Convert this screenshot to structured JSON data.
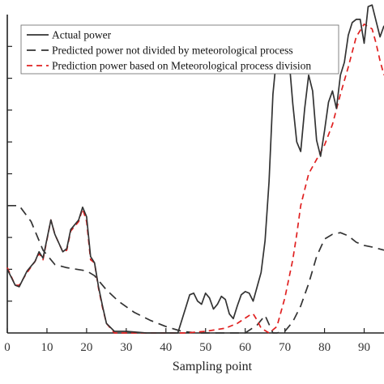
{
  "chart_data": {
    "type": "line",
    "xlabel": "Sampling point",
    "ylabel": "",
    "xlim": [
      0,
      95
    ],
    "ylim": [
      0,
      10
    ],
    "x_ticks": [
      0,
      10,
      20,
      30,
      40,
      50,
      60,
      70,
      80,
      90
    ],
    "y_ticks": [
      1,
      2,
      3,
      4,
      5,
      6,
      7,
      8,
      9
    ],
    "grid": false,
    "legend_position": "top-left",
    "series": [
      {
        "name": "Actual power",
        "color": "#333333",
        "dash": "solid",
        "points": [
          [
            0,
            2.0
          ],
          [
            2,
            1.5
          ],
          [
            3,
            1.45
          ],
          [
            5,
            1.95
          ],
          [
            7,
            2.25
          ],
          [
            8,
            2.55
          ],
          [
            9,
            2.35
          ],
          [
            11,
            3.55
          ],
          [
            12,
            3.1
          ],
          [
            14,
            2.55
          ],
          [
            15,
            2.65
          ],
          [
            16,
            3.25
          ],
          [
            17,
            3.4
          ],
          [
            18,
            3.55
          ],
          [
            19,
            3.95
          ],
          [
            20,
            3.65
          ],
          [
            21,
            2.4
          ],
          [
            22,
            2.2
          ],
          [
            23,
            1.45
          ],
          [
            24,
            0.85
          ],
          [
            25,
            0.3
          ],
          [
            27,
            0.05
          ],
          [
            30,
            0.05
          ],
          [
            35,
            0.0
          ],
          [
            40,
            0.0
          ],
          [
            43,
            0.0
          ],
          [
            45,
            0.8
          ],
          [
            46,
            1.2
          ],
          [
            47,
            1.25
          ],
          [
            48,
            1.0
          ],
          [
            49,
            0.9
          ],
          [
            50,
            1.25
          ],
          [
            51,
            1.1
          ],
          [
            52,
            0.75
          ],
          [
            53,
            0.9
          ],
          [
            54,
            1.15
          ],
          [
            55,
            1.05
          ],
          [
            56,
            0.6
          ],
          [
            57,
            0.45
          ],
          [
            58,
            0.85
          ],
          [
            59,
            1.2
          ],
          [
            60,
            1.3
          ],
          [
            61,
            1.25
          ],
          [
            62,
            1.0
          ],
          [
            63,
            1.45
          ],
          [
            64,
            1.9
          ],
          [
            65,
            2.9
          ],
          [
            66,
            4.75
          ],
          [
            67,
            7.5
          ],
          [
            68,
            8.8
          ],
          [
            69,
            9.55
          ],
          [
            70,
            9.45
          ],
          [
            71,
            8.7
          ],
          [
            72,
            7.2
          ],
          [
            73,
            6.0
          ],
          [
            74,
            5.7
          ],
          [
            75,
            7.05
          ],
          [
            76,
            8.1
          ],
          [
            77,
            7.6
          ],
          [
            78,
            6.05
          ],
          [
            79,
            5.55
          ],
          [
            80,
            6.35
          ],
          [
            81,
            7.25
          ],
          [
            82,
            7.6
          ],
          [
            83,
            7.05
          ],
          [
            84,
            8.1
          ],
          [
            85,
            8.5
          ],
          [
            86,
            9.35
          ],
          [
            87,
            9.75
          ],
          [
            88,
            9.85
          ],
          [
            89,
            9.85
          ],
          [
            90,
            9.1
          ],
          [
            91,
            10.25
          ],
          [
            92,
            10.3
          ],
          [
            93,
            9.8
          ],
          [
            94,
            9.3
          ],
          [
            95,
            9.65
          ]
        ]
      },
      {
        "name": "Predicted power not divided by meteorological process",
        "color": "#333333",
        "dash": "long-dash",
        "points": [
          [
            0,
            4.0
          ],
          [
            3,
            4.0
          ],
          [
            6,
            3.5
          ],
          [
            9,
            2.6
          ],
          [
            12,
            2.15
          ],
          [
            15,
            2.05
          ],
          [
            20,
            1.95
          ],
          [
            22,
            1.8
          ],
          [
            25,
            1.35
          ],
          [
            28,
            1.0
          ],
          [
            32,
            0.65
          ],
          [
            36,
            0.4
          ],
          [
            40,
            0.2
          ],
          [
            44,
            0.05
          ],
          [
            48,
            0.0
          ],
          [
            60,
            0.0
          ],
          [
            63,
            0.25
          ],
          [
            65,
            0.55
          ],
          [
            67,
            0.0
          ],
          [
            68,
            0.0
          ],
          [
            70,
            0.05
          ],
          [
            72,
            0.35
          ],
          [
            74,
            0.85
          ],
          [
            76,
            1.55
          ],
          [
            78,
            2.4
          ],
          [
            80,
            2.95
          ],
          [
            82,
            3.1
          ],
          [
            84,
            3.15
          ],
          [
            86,
            3.05
          ],
          [
            88,
            2.85
          ],
          [
            90,
            2.75
          ],
          [
            92,
            2.7
          ],
          [
            95,
            2.6
          ]
        ]
      },
      {
        "name": "Prediction power based on Meteorological process division",
        "color": "#e02020",
        "dash": "short-dash",
        "points": [
          [
            0,
            2.05
          ],
          [
            2,
            1.5
          ],
          [
            3,
            1.5
          ],
          [
            5,
            1.9
          ],
          [
            7,
            2.25
          ],
          [
            8,
            2.5
          ],
          [
            9,
            2.3
          ],
          [
            11,
            3.55
          ],
          [
            12,
            3.1
          ],
          [
            14,
            2.55
          ],
          [
            15,
            2.6
          ],
          [
            16,
            3.2
          ],
          [
            18,
            3.5
          ],
          [
            19,
            3.9
          ],
          [
            20,
            3.5
          ],
          [
            21,
            2.3
          ],
          [
            22,
            2.2
          ],
          [
            23,
            1.4
          ],
          [
            24,
            0.8
          ],
          [
            25,
            0.3
          ],
          [
            27,
            0.0
          ],
          [
            30,
            0.0
          ],
          [
            45,
            0.0
          ],
          [
            50,
            0.05
          ],
          [
            55,
            0.15
          ],
          [
            58,
            0.3
          ],
          [
            61,
            0.55
          ],
          [
            62,
            0.6
          ],
          [
            63,
            0.4
          ],
          [
            64,
            0.15
          ],
          [
            66,
            0.0
          ],
          [
            68,
            0.2
          ],
          [
            70,
            1.1
          ],
          [
            72,
            2.3
          ],
          [
            73,
            3.1
          ],
          [
            74,
            4.0
          ],
          [
            76,
            5.0
          ],
          [
            78,
            5.45
          ],
          [
            80,
            5.9
          ],
          [
            82,
            6.55
          ],
          [
            84,
            7.5
          ],
          [
            86,
            8.35
          ],
          [
            88,
            9.3
          ],
          [
            90,
            9.7
          ],
          [
            92,
            9.55
          ],
          [
            93,
            9.1
          ],
          [
            94,
            8.55
          ],
          [
            95,
            8.1
          ]
        ]
      }
    ]
  }
}
